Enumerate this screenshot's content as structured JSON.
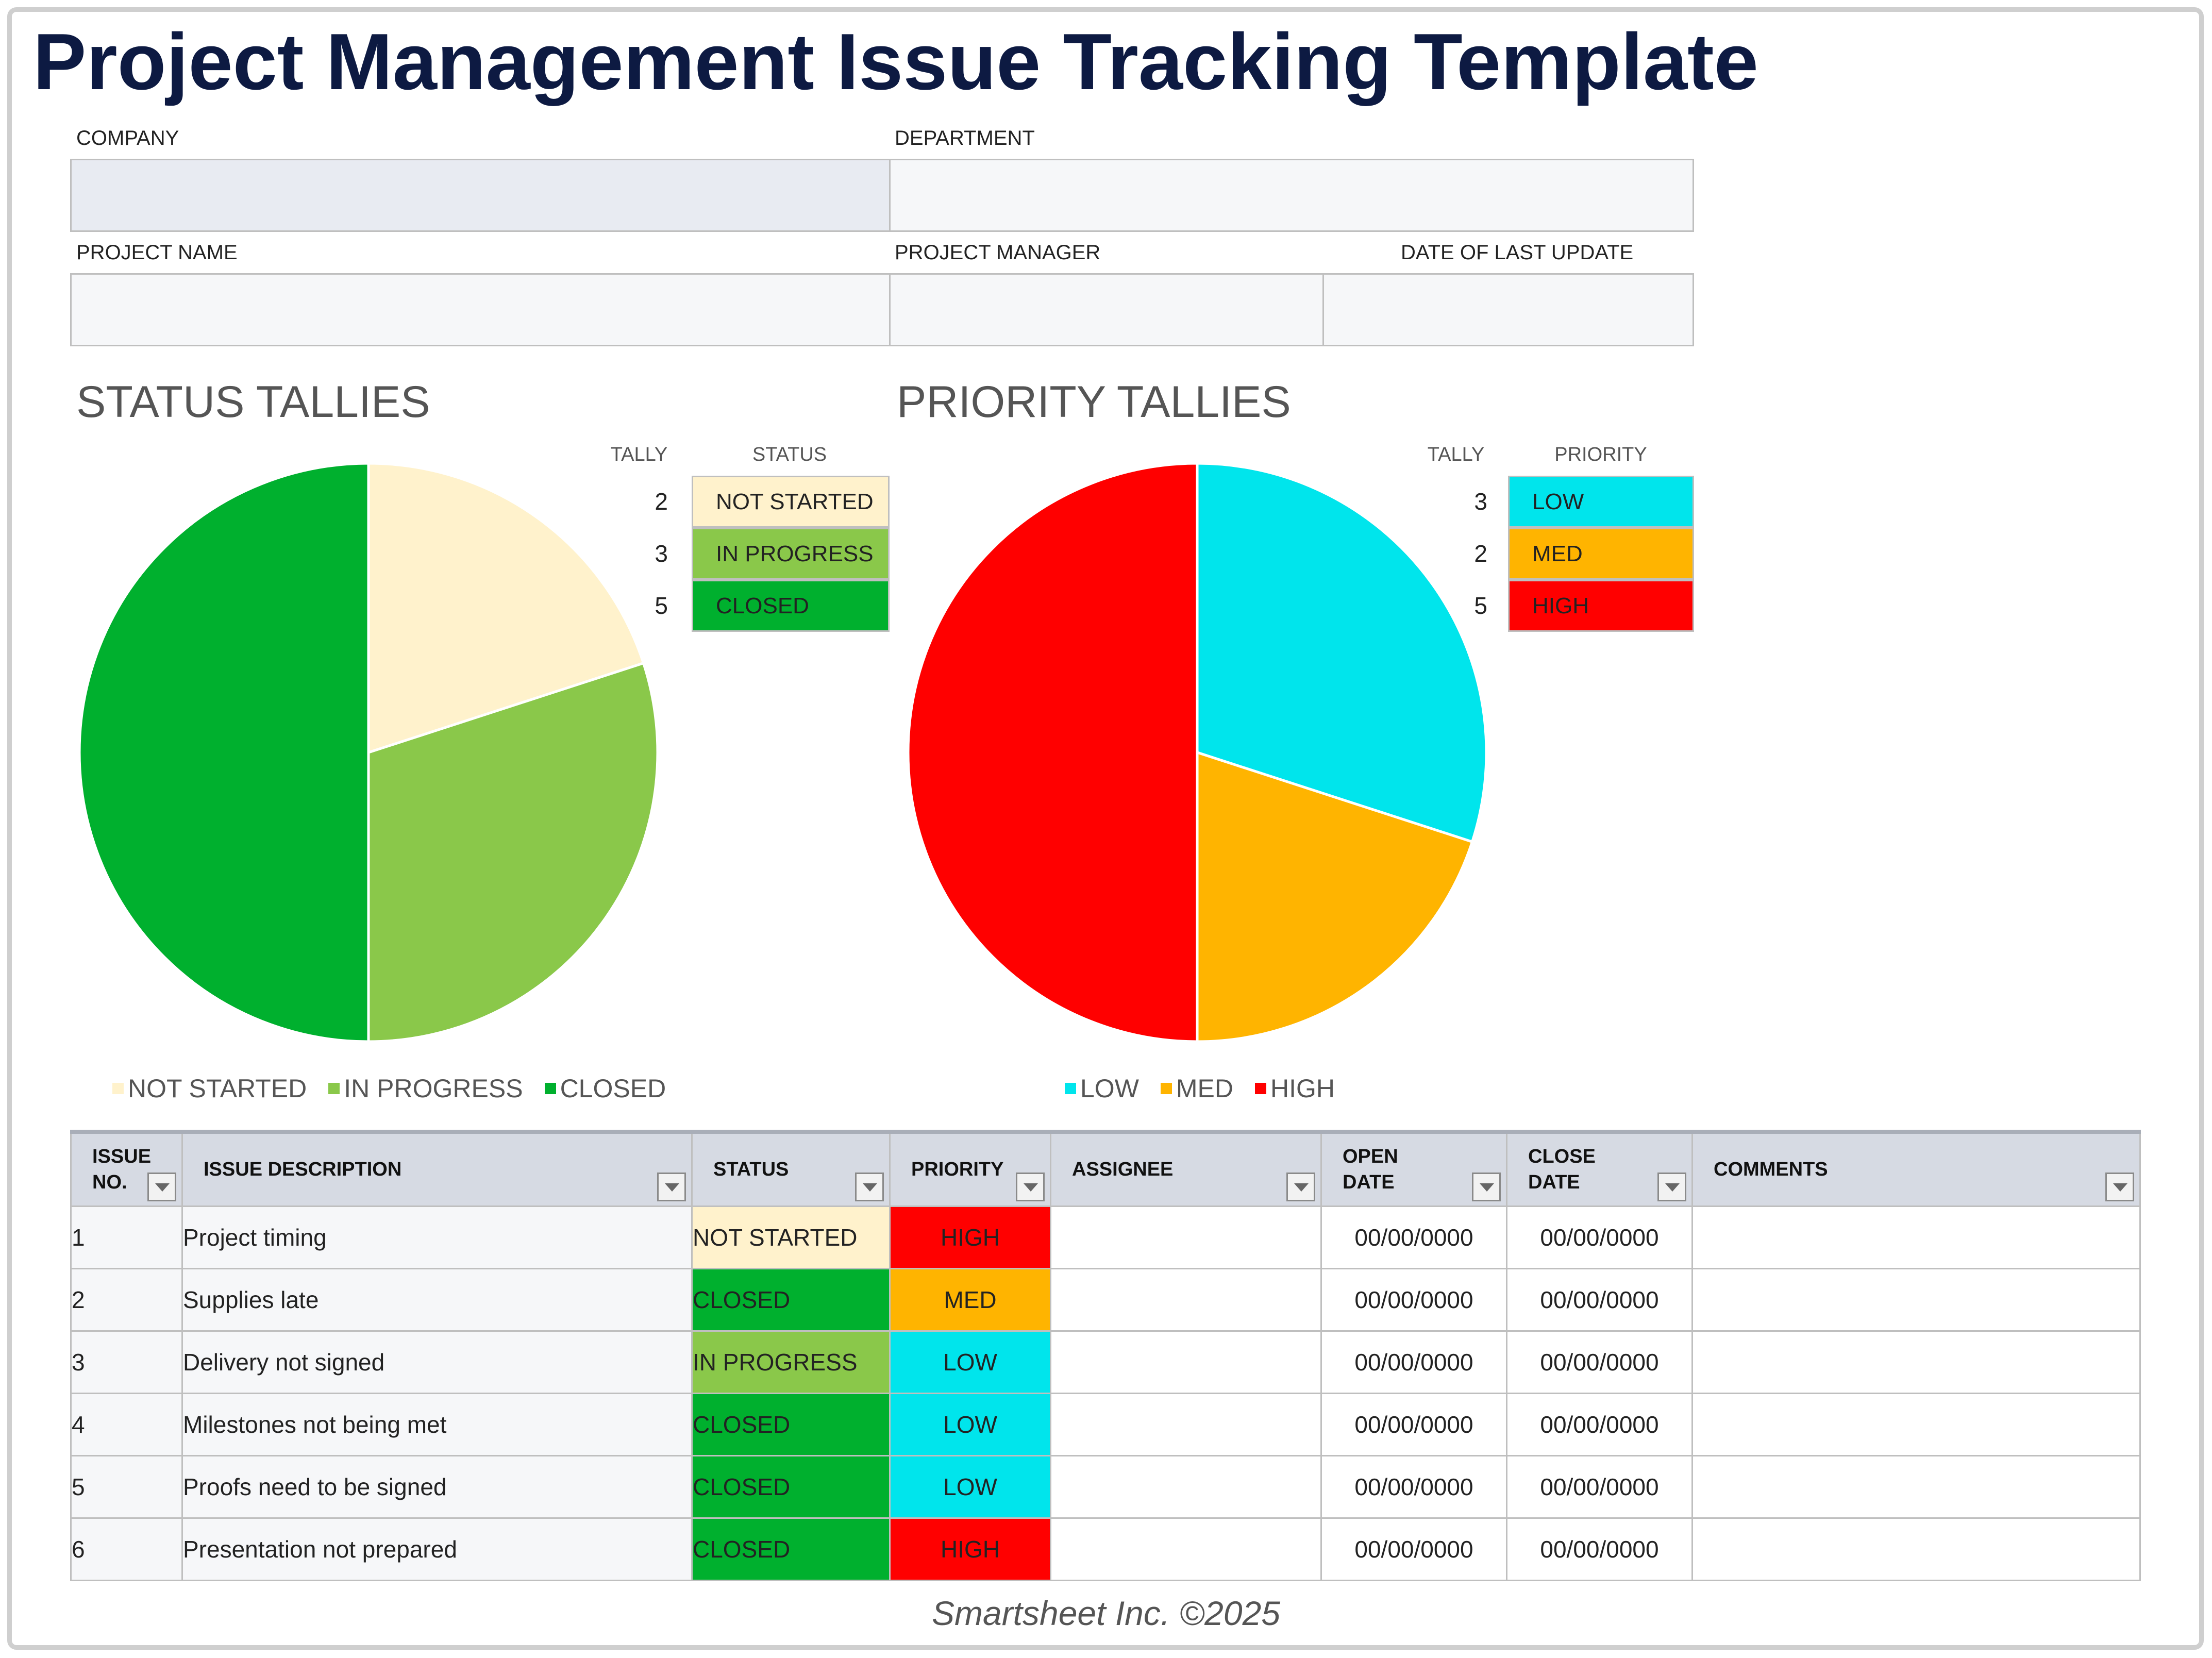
{
  "title": "Project Management Issue Tracking Template",
  "header_fields": {
    "company_label": "COMPANY",
    "department_label": "DEPARTMENT",
    "project_name_label": "PROJECT NAME",
    "project_manager_label": "PROJECT MANAGER",
    "last_update_label": "DATE OF LAST UPDATE",
    "company_value": "",
    "department_value": "",
    "project_name_value": "",
    "project_manager_value": "",
    "last_update_value": ""
  },
  "status_tallies": {
    "title": "STATUS TALLIES",
    "col_tally": "TALLY",
    "col_status": "STATUS",
    "rows": [
      {
        "tally": "2",
        "label": "NOT STARTED",
        "color": "#fff2cc"
      },
      {
        "tally": "3",
        "label": "IN PROGRESS",
        "color": "#8ac84a"
      },
      {
        "tally": "5",
        "label": "CLOSED",
        "color": "#00b02e"
      }
    ]
  },
  "priority_tallies": {
    "title": "PRIORITY TALLIES",
    "col_tally": "TALLY",
    "col_priority": "PRIORITY",
    "rows": [
      {
        "tally": "3",
        "label": "LOW",
        "color": "#00e5ec"
      },
      {
        "tally": "2",
        "label": "MED",
        "color": "#ffb400"
      },
      {
        "tally": "5",
        "label": "HIGH",
        "color": "#ff0000"
      }
    ]
  },
  "chart_data": [
    {
      "type": "pie",
      "title": "",
      "categories": [
        "NOT STARTED",
        "IN PROGRESS",
        "CLOSED"
      ],
      "values": [
        2,
        3,
        5
      ],
      "colors": [
        "#fff2cc",
        "#8ac84a",
        "#00b02e"
      ],
      "legend": "bottom"
    },
    {
      "type": "pie",
      "title": "",
      "categories": [
        "LOW",
        "MED",
        "HIGH"
      ],
      "values": [
        3,
        2,
        5
      ],
      "colors": [
        "#00e5ec",
        "#ffb400",
        "#ff0000"
      ],
      "legend": "bottom"
    }
  ],
  "issues_table": {
    "columns": {
      "issue_no_1": "ISSUE",
      "issue_no_2": "NO.",
      "description": "ISSUE DESCRIPTION",
      "status": "STATUS",
      "priority": "PRIORITY",
      "assignee": "ASSIGNEE",
      "open_date_1": "OPEN",
      "open_date_2": "DATE",
      "close_date_1": "CLOSE",
      "close_date_2": "DATE",
      "comments": "COMMENTS"
    },
    "rows": [
      {
        "no": "1",
        "description": "Project timing",
        "status": "NOT STARTED",
        "priority": "HIGH",
        "assignee": "",
        "open_date": "00/00/0000",
        "close_date": "00/00/0000",
        "comments": ""
      },
      {
        "no": "2",
        "description": "Supplies late",
        "status": "CLOSED",
        "priority": "MED",
        "assignee": "",
        "open_date": "00/00/0000",
        "close_date": "00/00/0000",
        "comments": ""
      },
      {
        "no": "3",
        "description": "Delivery not signed",
        "status": "IN PROGRESS",
        "priority": "LOW",
        "assignee": "",
        "open_date": "00/00/0000",
        "close_date": "00/00/0000",
        "comments": ""
      },
      {
        "no": "4",
        "description": "Milestones not being met",
        "status": "CLOSED",
        "priority": "LOW",
        "assignee": "",
        "open_date": "00/00/0000",
        "close_date": "00/00/0000",
        "comments": ""
      },
      {
        "no": "5",
        "description": "Proofs need to be signed",
        "status": "CLOSED",
        "priority": "LOW",
        "assignee": "",
        "open_date": "00/00/0000",
        "close_date": "00/00/0000",
        "comments": ""
      },
      {
        "no": "6",
        "description": "Presentation not prepared",
        "status": "CLOSED",
        "priority": "HIGH",
        "assignee": "",
        "open_date": "00/00/0000",
        "close_date": "00/00/0000",
        "comments": ""
      }
    ]
  },
  "status_colors": {
    "NOT STARTED": "#fff2cc",
    "IN PROGRESS": "#8ac84a",
    "CLOSED": "#00b02e"
  },
  "priority_colors": {
    "LOW": "#00e5ec",
    "MED": "#ffb400",
    "HIGH": "#ff0000"
  },
  "footer": "Smartsheet Inc. ©2025"
}
